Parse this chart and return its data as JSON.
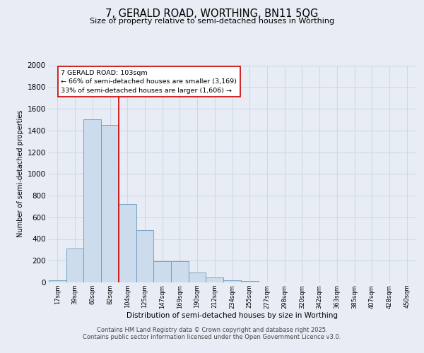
{
  "title1": "7, GERALD ROAD, WORTHING, BN11 5QG",
  "title2": "Size of property relative to semi-detached houses in Worthing",
  "xlabel": "Distribution of semi-detached houses by size in Worthing",
  "ylabel": "Number of semi-detached properties",
  "categories": [
    "17sqm",
    "39sqm",
    "60sqm",
    "82sqm",
    "104sqm",
    "125sqm",
    "147sqm",
    "169sqm",
    "190sqm",
    "212sqm",
    "234sqm",
    "255sqm",
    "277sqm",
    "298sqm",
    "320sqm",
    "342sqm",
    "363sqm",
    "385sqm",
    "407sqm",
    "428sqm",
    "450sqm"
  ],
  "values": [
    20,
    310,
    1500,
    1450,
    720,
    480,
    195,
    195,
    90,
    45,
    20,
    10,
    0,
    0,
    0,
    0,
    0,
    0,
    0,
    0,
    0
  ],
  "bar_color": "#ccdcec",
  "bar_edge_color": "#6699bb",
  "vline_color": "#cc0000",
  "annotation_text": "7 GERALD ROAD: 103sqm\n← 66% of semi-detached houses are smaller (3,169)\n33% of semi-detached houses are larger (1,606) →",
  "annotation_box_color": "#ffffff",
  "annotation_box_edge_color": "#cc0000",
  "ylim": [
    0,
    2000
  ],
  "yticks": [
    0,
    200,
    400,
    600,
    800,
    1000,
    1200,
    1400,
    1600,
    1800,
    2000
  ],
  "footer1": "Contains HM Land Registry data © Crown copyright and database right 2025.",
  "footer2": "Contains public sector information licensed under the Open Government Licence v3.0.",
  "bg_color": "#e8edf5",
  "plot_bg_color": "#e8edf5",
  "grid_color": "#d0d8e8",
  "bar_width": 1.0
}
